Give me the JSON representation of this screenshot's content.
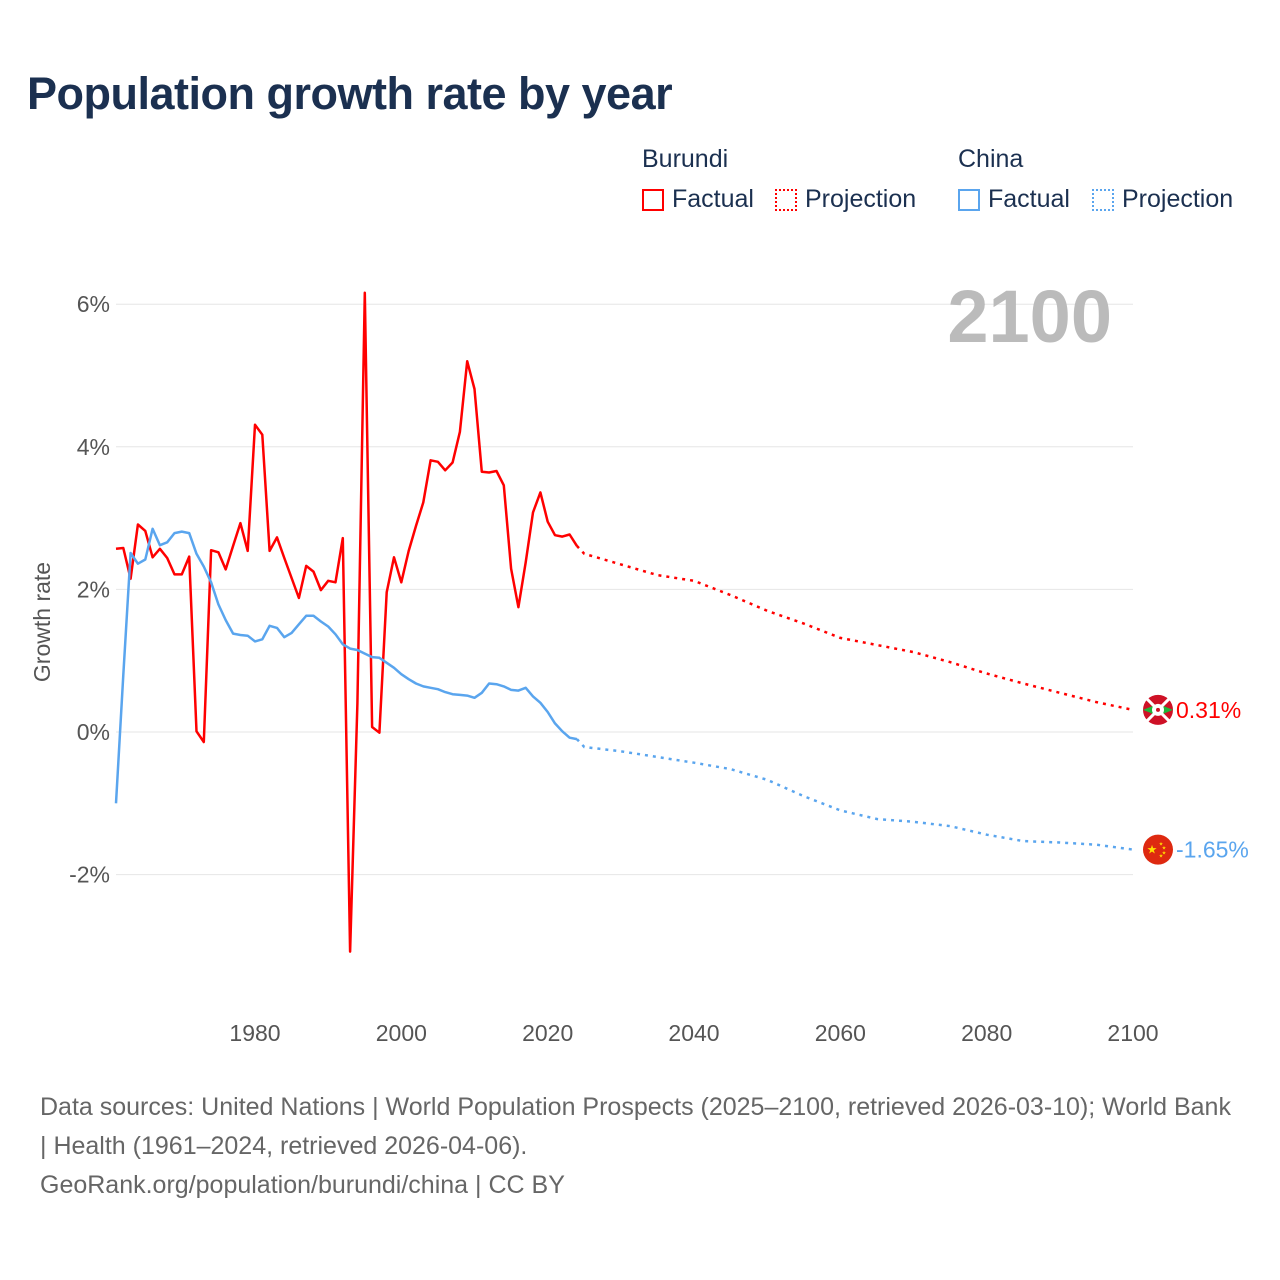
{
  "title": "Population growth rate by year",
  "legend": {
    "groups": [
      {
        "name": "Burundi",
        "factual": "Factual",
        "projection": "Projection",
        "color": "#ff0000"
      },
      {
        "name": "China",
        "factual": "Factual",
        "projection": "Projection",
        "color": "#5aa5ee"
      }
    ]
  },
  "footer": {
    "sources": "Data sources: United Nations | World Population Prospects (2025–2100, retrieved 2026-03-10); World Bank | Health (1961–2024, retrieved 2026-04-06).",
    "credit": "GeoRank.org/population/burundi/china | CC BY"
  },
  "chart_data": {
    "type": "line",
    "title": "Population growth rate by year",
    "year_label": "2100",
    "ylabel": "Growth rate",
    "xlabel": "",
    "xlim": [
      1961,
      2100
    ],
    "ylim": [
      -3.6,
      6.5
    ],
    "x_ticks": [
      1980,
      2000,
      2020,
      2040,
      2060,
      2080,
      2100
    ],
    "y_ticks": [
      -2,
      0,
      2,
      4,
      6
    ],
    "y_tick_labels": [
      "-2%",
      "0%",
      "2%",
      "4%",
      "6%"
    ],
    "grid": true,
    "series": [
      {
        "name": "Burundi",
        "color": "#ff0000",
        "end_label": "0.31%",
        "factual": {
          "x": [
            1961,
            1962,
            1963,
            1964,
            1965,
            1966,
            1967,
            1968,
            1969,
            1970,
            1971,
            1972,
            1973,
            1974,
            1975,
            1976,
            1977,
            1978,
            1979,
            1980,
            1981,
            1982,
            1983,
            1984,
            1985,
            1986,
            1987,
            1988,
            1989,
            1990,
            1991,
            1992,
            1993,
            1994,
            1995,
            1996,
            1997,
            1998,
            1999,
            2000,
            2001,
            2002,
            2003,
            2004,
            2005,
            2006,
            2007,
            2008,
            2009,
            2010,
            2011,
            2012,
            2013,
            2014,
            2015,
            2016,
            2017,
            2018,
            2019,
            2020,
            2021,
            2022,
            2023,
            2024
          ],
          "y": [
            2.57,
            2.58,
            2.15,
            2.91,
            2.82,
            2.45,
            2.57,
            2.44,
            2.21,
            2.21,
            2.46,
            0.01,
            -0.14,
            2.55,
            2.52,
            2.28,
            2.61,
            2.93,
            2.54,
            4.31,
            4.17,
            2.54,
            2.73,
            2.44,
            2.16,
            1.88,
            2.33,
            2.25,
            1.99,
            2.12,
            2.1,
            2.72,
            -3.08,
            0.4,
            6.16,
            0.07,
            -0.01,
            1.96,
            2.45,
            2.1,
            2.54,
            2.89,
            3.22,
            3.81,
            3.79,
            3.67,
            3.78,
            4.21,
            5.2,
            4.81,
            3.65,
            3.64,
            3.66,
            3.46,
            2.29,
            1.75,
            2.38,
            3.08,
            3.36,
            2.95,
            2.76,
            2.74,
            2.77,
            2.61
          ]
        },
        "projection": {
          "x": [
            2024,
            2025,
            2030,
            2035,
            2040,
            2045,
            2050,
            2055,
            2060,
            2065,
            2070,
            2075,
            2080,
            2085,
            2090,
            2095,
            2100
          ],
          "y": [
            2.61,
            2.5,
            2.35,
            2.2,
            2.12,
            1.92,
            1.7,
            1.52,
            1.32,
            1.22,
            1.12,
            0.98,
            0.82,
            0.68,
            0.55,
            0.42,
            0.31
          ]
        }
      },
      {
        "name": "China",
        "color": "#5aa5ee",
        "end_label": "-1.65%",
        "factual": {
          "x": [
            1961,
            1962,
            1963,
            1964,
            1965,
            1966,
            1967,
            1968,
            1969,
            1970,
            1971,
            1972,
            1973,
            1974,
            1975,
            1976,
            1977,
            1978,
            1979,
            1980,
            1981,
            1982,
            1983,
            1984,
            1985,
            1986,
            1987,
            1988,
            1989,
            1990,
            1991,
            1992,
            1993,
            1994,
            1995,
            1996,
            1997,
            1998,
            1999,
            2000,
            2001,
            2002,
            2003,
            2004,
            2005,
            2006,
            2007,
            2008,
            2009,
            2010,
            2011,
            2012,
            2013,
            2014,
            2015,
            2016,
            2017,
            2018,
            2019,
            2020,
            2021,
            2022,
            2023,
            2024
          ],
          "y": [
            -1.0,
            0.8,
            2.51,
            2.36,
            2.42,
            2.85,
            2.62,
            2.66,
            2.79,
            2.81,
            2.79,
            2.5,
            2.32,
            2.1,
            1.79,
            1.57,
            1.38,
            1.36,
            1.35,
            1.27,
            1.3,
            1.49,
            1.46,
            1.33,
            1.39,
            1.51,
            1.63,
            1.63,
            1.55,
            1.48,
            1.37,
            1.23,
            1.17,
            1.15,
            1.1,
            1.05,
            1.04,
            0.97,
            0.9,
            0.81,
            0.74,
            0.68,
            0.64,
            0.62,
            0.6,
            0.56,
            0.53,
            0.52,
            0.51,
            0.48,
            0.55,
            0.68,
            0.67,
            0.64,
            0.59,
            0.58,
            0.62,
            0.5,
            0.41,
            0.28,
            0.12,
            0.01,
            -0.08,
            -0.1
          ]
        },
        "projection": {
          "x": [
            2024,
            2025,
            2030,
            2035,
            2040,
            2045,
            2050,
            2055,
            2060,
            2065,
            2070,
            2075,
            2080,
            2085,
            2090,
            2095,
            2100
          ],
          "y": [
            -0.1,
            -0.21,
            -0.27,
            -0.35,
            -0.43,
            -0.52,
            -0.67,
            -0.9,
            -1.1,
            -1.22,
            -1.26,
            -1.32,
            -1.44,
            -1.53,
            -1.55,
            -1.58,
            -1.65
          ]
        }
      }
    ]
  }
}
